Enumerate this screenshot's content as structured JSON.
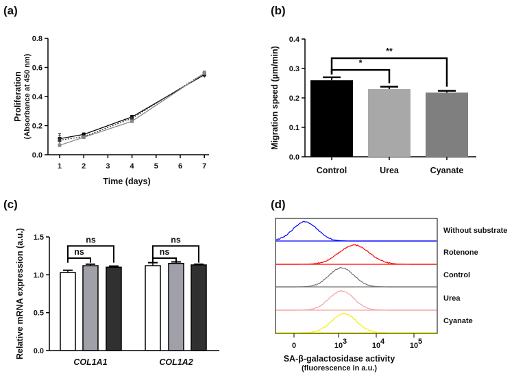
{
  "chart_data": [
    {
      "panel": "(a)",
      "type": "line",
      "xlabel": "Time (days)",
      "ylabel": "Proliferation",
      "ylabel2": "(Absorbance at 450 nm)",
      "ylim": [
        0,
        0.8
      ],
      "yticks": [
        "0.0",
        "0.2",
        "0.4",
        "0.6",
        "0.8"
      ],
      "xlim": [
        1,
        7
      ],
      "xticks": [
        "1",
        "2",
        "3",
        "4",
        "5",
        "6",
        "7"
      ],
      "x": [
        1,
        2,
        4,
        7
      ],
      "series": [
        {
          "values": [
            0.11,
            0.14,
            0.26,
            0.55
          ],
          "errors": [
            0.035,
            0.01,
            0.01,
            0.02
          ],
          "color": "#000000",
          "style": "solid"
        },
        {
          "values": [
            0.1,
            0.125,
            0.25,
            0.56
          ],
          "errors": [
            0.03,
            0.01,
            0.01,
            0.015
          ],
          "color": "#333333",
          "style": "dotted"
        },
        {
          "values": [
            0.065,
            0.12,
            0.23,
            0.56
          ],
          "errors": [
            0.01,
            0.008,
            0.01,
            0.015
          ],
          "color": "#888888",
          "style": "solid"
        }
      ]
    },
    {
      "panel": "(b)",
      "type": "bar",
      "ylabel": "Migration speed (µm/min)",
      "ylim": [
        0,
        0.4
      ],
      "yticks": [
        "0.0",
        "0.1",
        "0.2",
        "0.3",
        "0.4"
      ],
      "categories": [
        "Control",
        "Urea",
        "Cyanate"
      ],
      "values": [
        0.26,
        0.23,
        0.218
      ],
      "errors": [
        0.01,
        0.008,
        0.006
      ],
      "colors": [
        "#000000",
        "#a8a8a8",
        "#7f7f7f"
      ],
      "annotations": [
        {
          "from": 0,
          "to": 1,
          "y": 0.295,
          "label": "*"
        },
        {
          "from": 0,
          "to": 2,
          "y": 0.335,
          "label": "**"
        }
      ]
    },
    {
      "panel": "(c)",
      "type": "bar",
      "ylabel": "Relative mRNA expression (a.u.)",
      "ylim": [
        0,
        1.5
      ],
      "yticks": [
        "0.0",
        "0.5",
        "1.0",
        "1.5"
      ],
      "categories": [
        "COL1A1",
        "COL1A2"
      ],
      "series": [
        {
          "values": [
            1.03,
            1.12
          ],
          "errors": [
            0.03,
            0.04
          ],
          "color": "#ffffff"
        },
        {
          "values": [
            1.12,
            1.15
          ],
          "errors": [
            0.02,
            0.02
          ],
          "color": "#a0a0a8"
        },
        {
          "values": [
            1.1,
            1.13
          ],
          "errors": [
            0.015,
            0.01
          ],
          "color": "#303030"
        }
      ],
      "annotations": [
        {
          "group": 0,
          "from": 0,
          "to": 1,
          "y": 1.22,
          "label": "ns"
        },
        {
          "group": 0,
          "from": 0,
          "to": 2,
          "y": 1.38,
          "label": "ns"
        },
        {
          "group": 1,
          "from": 0,
          "to": 1,
          "y": 1.22,
          "label": "ns"
        },
        {
          "group": 1,
          "from": 0,
          "to": 2,
          "y": 1.38,
          "label": "ns"
        }
      ]
    },
    {
      "panel": "(d)",
      "type": "area",
      "xlabel": "SA-β-galactosidase activity",
      "xlabel2": "(fluorescence in a.u.)",
      "xscale": "biexponential",
      "xticks": [
        {
          "label": "0",
          "value": 0
        },
        {
          "label": "10",
          "sup": "3",
          "value": 1000
        },
        {
          "label": "10",
          "sup": "4",
          "value": 10000
        },
        {
          "label": "10",
          "sup": "5",
          "value": 100000
        }
      ],
      "series": [
        {
          "name": "Without substrate",
          "peak": 250,
          "color": "#0000ff"
        },
        {
          "name": "Rotenone",
          "peak": 2600,
          "color": "#ff0000"
        },
        {
          "name": "Control",
          "peak": 1200,
          "color": "#707070"
        },
        {
          "name": "Urea",
          "peak": 1200,
          "color": "#f4a0a0"
        },
        {
          "name": "Cyanate",
          "peak": 1400,
          "color": "#f0f000"
        }
      ]
    }
  ]
}
